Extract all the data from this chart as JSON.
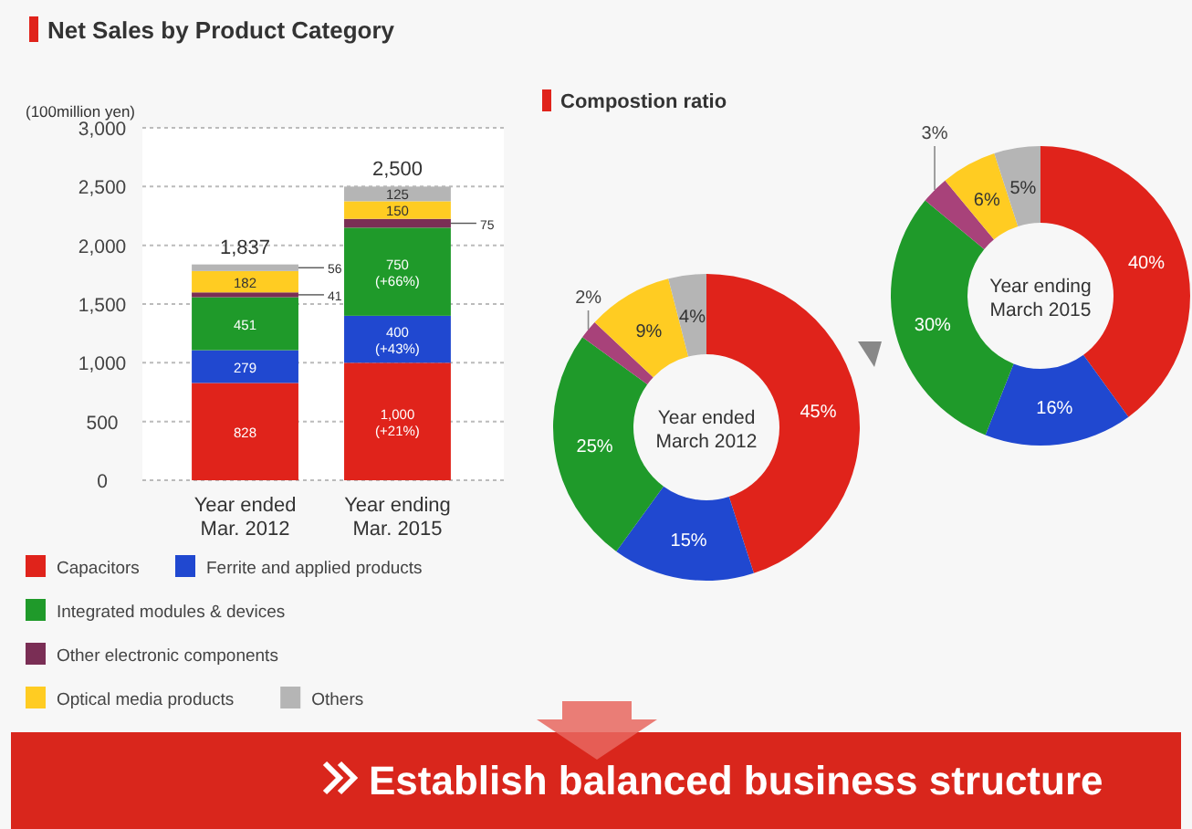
{
  "chart_data": [
    {
      "type": "bar",
      "title": "Net Sales by Product Category",
      "ylabel": "(100million yen)",
      "categories": [
        "Year ended\nMar. 2012",
        "Year ending\nMar. 2015"
      ],
      "stacked": true,
      "ylim": [
        0,
        3000
      ],
      "yticks": [
        0,
        500,
        {
          "value": 1000,
          "label": "1,000"
        },
        {
          "value": 1500,
          "label": "1,500"
        },
        {
          "value": 2000,
          "label": "2,000"
        },
        {
          "value": 2500,
          "label": "2,500"
        },
        {
          "value": 3000,
          "label": "3,000"
        }
      ],
      "grid": "y",
      "legend": "bottom",
      "series": [
        {
          "name": "Capacitors",
          "color": "#e0231b",
          "values": [
            828,
            1000
          ],
          "value_labels": [
            "828",
            "1,000\n(+21%)"
          ]
        },
        {
          "name": "Ferrite and applied products",
          "color": "#2048d0",
          "values": [
            279,
            400
          ],
          "value_labels": [
            "279",
            "400\n(+43%)"
          ]
        },
        {
          "name": "Integrated modules & devices",
          "color": "#1f9a2a",
          "values": [
            451,
            750
          ],
          "value_labels": [
            "451",
            "750\n(+66%)"
          ]
        },
        {
          "name": "Other electronic components",
          "color": "#7a2e55",
          "values": [
            41,
            75
          ],
          "value_labels": [
            "41",
            "75"
          ]
        },
        {
          "name": "Optical media products",
          "color": "#ffcc22",
          "values": [
            182,
            150
          ],
          "value_labels": [
            "182",
            "150"
          ]
        },
        {
          "name": "Others",
          "color": "#b5b5b5",
          "values": [
            56,
            125
          ],
          "value_labels": [
            "56",
            "125"
          ]
        }
      ],
      "totals": [
        "1,837",
        "2,500"
      ],
      "annotations": [
        "Establish balanced business structure"
      ]
    },
    {
      "type": "donut",
      "title": "Year ended\nMarch 2012",
      "categories": [
        null,
        null,
        null,
        null,
        null,
        null
      ],
      "values": [
        45,
        15,
        25,
        2,
        9,
        4
      ],
      "colors": [
        "#e0231b",
        "#2048d0",
        "#1f9a2a",
        "#a8427a",
        "#ffcc22",
        "#b5b5b5"
      ],
      "value_labels": [
        "45%",
        "15%",
        "25%",
        "2%",
        "9%",
        "4%"
      ],
      "annotations": [
        "Compostion ratio"
      ]
    },
    {
      "type": "donut",
      "title": "Year ending\nMarch 2015",
      "categories": [
        null,
        null,
        null,
        null,
        null,
        null
      ],
      "values": [
        40,
        16,
        30,
        3,
        6,
        5
      ],
      "colors": [
        "#e0231b",
        "#2048d0",
        "#1f9a2a",
        "#a8427a",
        "#ffcc22",
        "#b5b5b5"
      ],
      "value_labels": [
        "40%",
        "16%",
        "30%",
        "3%",
        "6%",
        "5%"
      ]
    }
  ]
}
